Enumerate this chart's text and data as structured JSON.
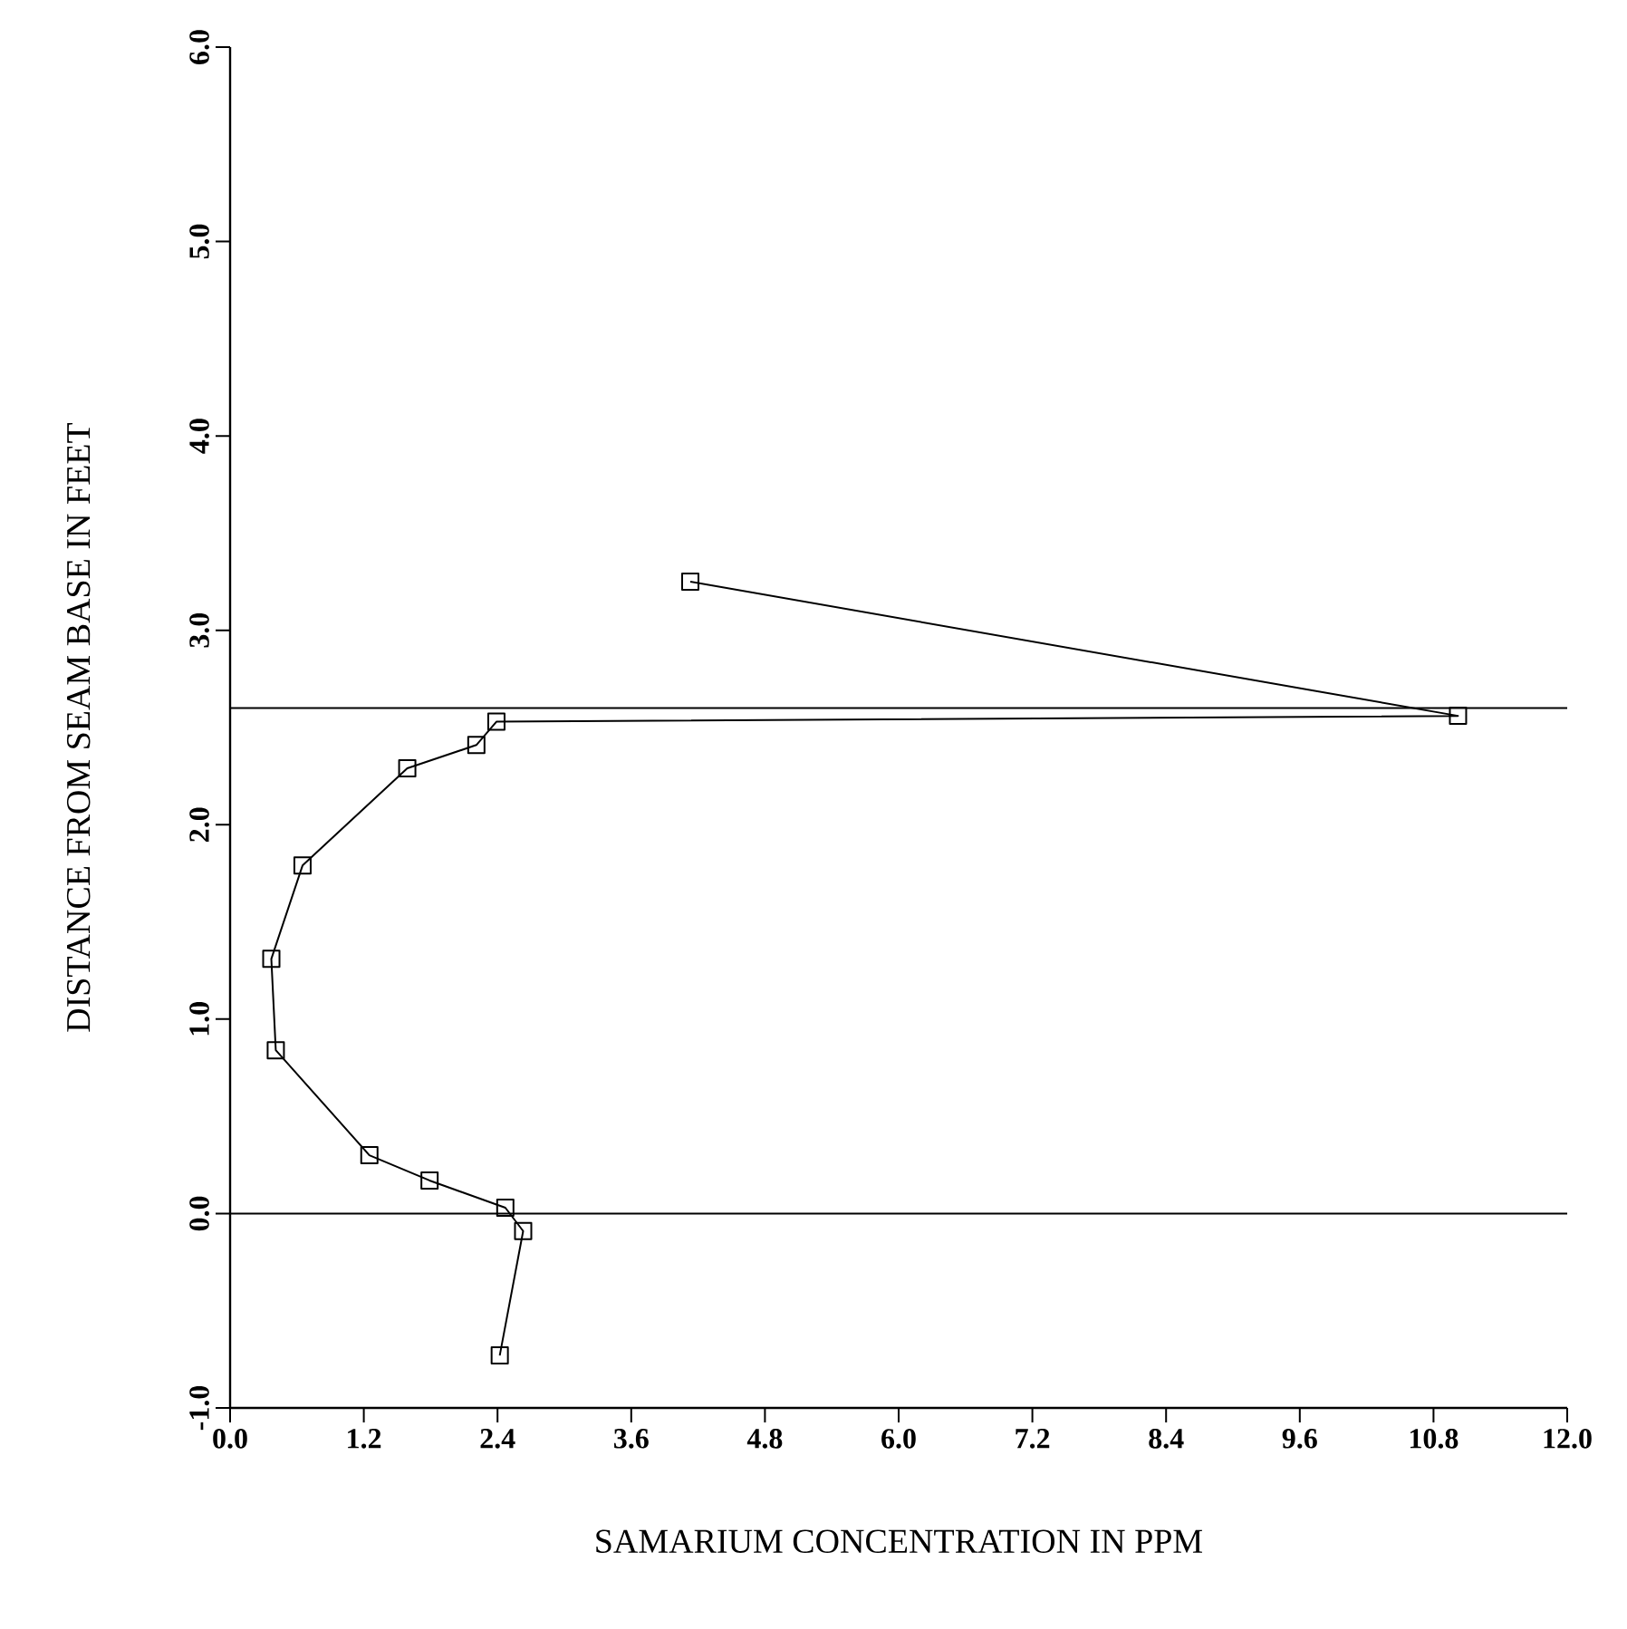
{
  "chart_data": {
    "type": "line",
    "xlabel": "SAMARIUM CONCENTRATION IN PPM",
    "ylabel": "DISTANCE FROM SEAM BASE IN FEET",
    "series": [
      {
        "color": "#000000",
        "x": [
          4.13,
          11.02,
          2.39,
          2.21,
          1.59,
          0.65,
          0.37,
          0.41,
          1.25,
          1.79,
          2.47,
          2.63,
          2.42
        ],
        "values": [
          3.25,
          2.56,
          2.53,
          2.41,
          2.29,
          1.79,
          1.31,
          0.84,
          0.3,
          0.17,
          0.03,
          -0.09,
          -0.73
        ]
      }
    ],
    "xlim": [
      0,
      12
    ],
    "ylim": [
      -1,
      6
    ],
    "xticks": [
      {
        "value": 0,
        "label": "0.0"
      },
      1.2,
      2.4,
      3.6,
      4.8,
      {
        "value": 6,
        "label": "6.0"
      },
      7.2,
      8.4,
      9.6,
      10.8,
      {
        "value": 12,
        "label": "12.0"
      }
    ],
    "yticks": [
      {
        "value": -1,
        "label": "-1.0"
      },
      {
        "value": 0,
        "label": "0.0"
      },
      {
        "value": 1,
        "label": "1.0"
      },
      {
        "value": 2,
        "label": "2.0"
      },
      {
        "value": 3,
        "label": "3.0"
      },
      {
        "value": 4,
        "label": "4.0"
      },
      {
        "value": 5,
        "label": "5.0"
      },
      {
        "value": 6,
        "label": "6.0"
      }
    ],
    "ref_lines": [
      {
        "axis": "y",
        "value": 2.6,
        "color": "#000000"
      },
      {
        "axis": "y",
        "value": 0,
        "color": "#000000"
      }
    ],
    "marker": "square",
    "line_style": "solid"
  }
}
